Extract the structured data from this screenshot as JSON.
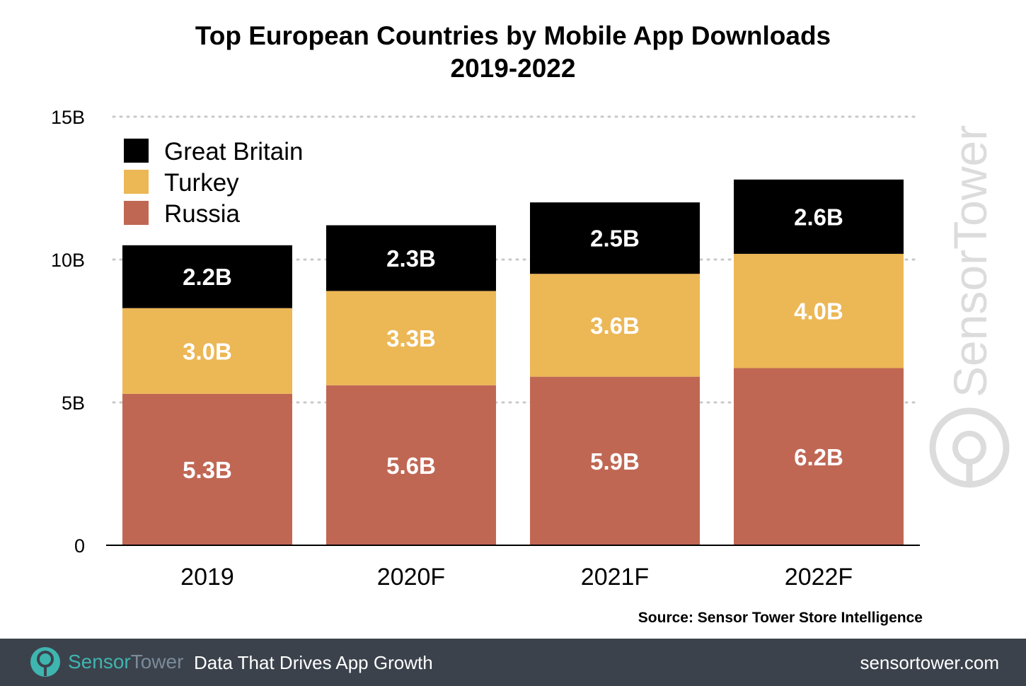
{
  "chart_data": {
    "type": "bar",
    "stacked": true,
    "title": "Top European Countries by Mobile App Downloads",
    "subtitle": "2019-2022",
    "categories": [
      "2019",
      "2020F",
      "2021F",
      "2022F"
    ],
    "series": [
      {
        "name": "Russia",
        "color": "#c06754",
        "values": [
          5.3,
          5.6,
          5.9,
          6.2
        ],
        "labels": [
          "5.3B",
          "5.6B",
          "5.9B",
          "6.2B"
        ]
      },
      {
        "name": "Turkey",
        "color": "#ecb755",
        "values": [
          3.0,
          3.3,
          3.6,
          4.0
        ],
        "labels": [
          "3.0B",
          "3.3B",
          "3.6B",
          "4.0B"
        ]
      },
      {
        "name": "Great Britain",
        "color": "#000000",
        "values": [
          2.2,
          2.3,
          2.5,
          2.6
        ],
        "labels": [
          "2.2B",
          "2.3B",
          "2.5B",
          "2.6B"
        ]
      }
    ],
    "ylim": [
      0,
      15
    ],
    "yticks": [
      0,
      5,
      10,
      15
    ],
    "ytick_labels": [
      "0",
      "5B",
      "10B",
      "15B"
    ],
    "grid": "dotted horizontal",
    "legend": "top-left",
    "xlabel": "",
    "ylabel": ""
  },
  "source": "Source: Sensor Tower Store Intelligence",
  "watermark": "SensorTower",
  "footer": {
    "brand_part1": "Sensor",
    "brand_part2": "Tower",
    "tagline": "Data That Drives App Growth",
    "url": "sensortower.com"
  },
  "colors": {
    "footer_bg": "#3b424c",
    "brand_accent": "#3fb5b0"
  }
}
